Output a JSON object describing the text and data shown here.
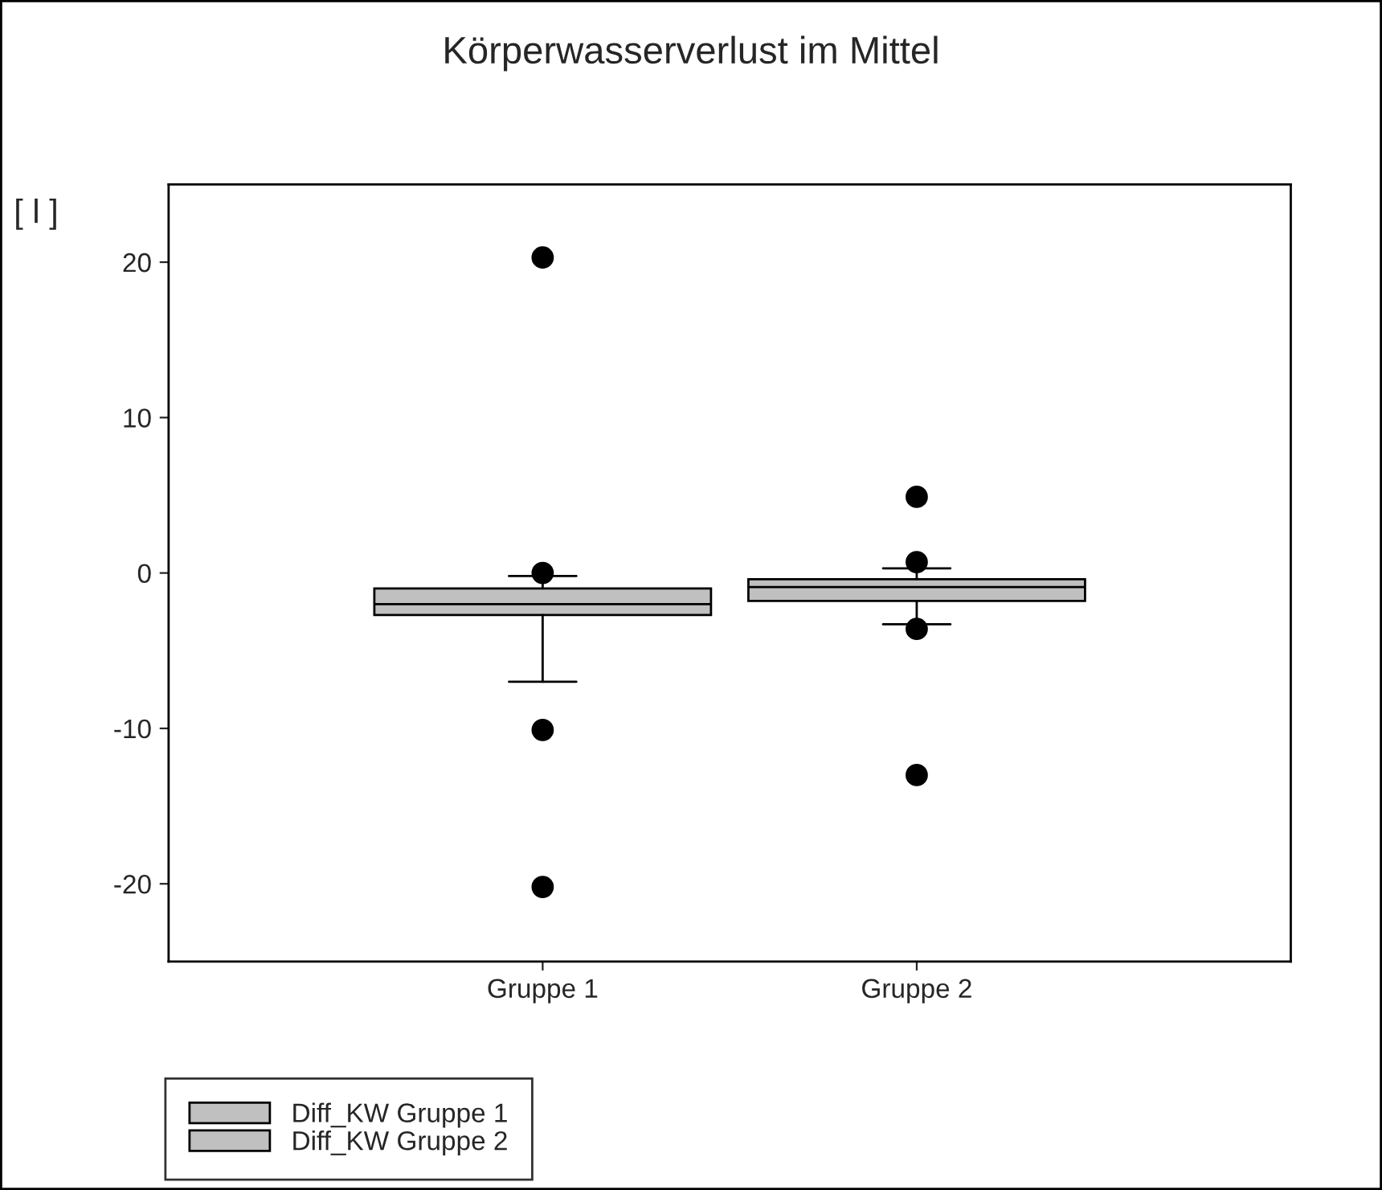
{
  "chart_data": {
    "type": "box",
    "title": "Körperwasserverlust im Mittel",
    "ylabel": "[ l ]",
    "categories": [
      "Gruppe 1",
      "Gruppe 2"
    ],
    "series": [
      {
        "name": "Diff_KW Gruppe 1",
        "color": "#c0c0c0",
        "boxes": [
          {
            "low": -7.0,
            "q1": -2.7,
            "median": -2.0,
            "q3": -1.0,
            "high": -0.2,
            "outliers": [
              20.3,
              0.0,
              -10.1,
              -20.2
            ]
          },
          null
        ]
      },
      {
        "name": "Diff_KW Gruppe 2",
        "color": "#c0c0c0",
        "boxes": [
          null,
          {
            "low": -3.3,
            "q1": -1.8,
            "median": -0.9,
            "q3": -0.4,
            "high": 0.3,
            "outliers": [
              4.9,
              0.7,
              -3.6,
              -13.0
            ]
          }
        ]
      }
    ],
    "ylim": [
      -25,
      25
    ],
    "yticks": [
      -20,
      -10,
      0,
      10,
      20
    ],
    "grid": false,
    "legend": "bottom left"
  }
}
